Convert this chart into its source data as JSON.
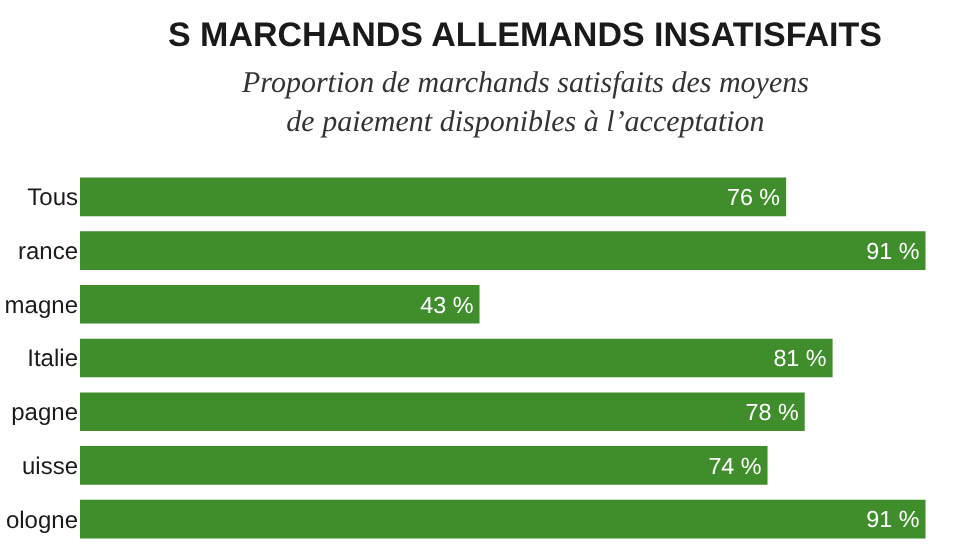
{
  "chart_data": {
    "type": "bar",
    "orientation": "horizontal",
    "title": "S MARCHANDS ALLEMANDS INSATISFAITS",
    "subtitle": "Proportion de marchands satisfaits des moyens\nde paiement disponibles à l’acceptation",
    "categories": [
      "Tous",
      "rance",
      "magne",
      "Italie",
      "pagne",
      "uisse",
      "ologne"
    ],
    "values": [
      76,
      91,
      43,
      81,
      78,
      74,
      91
    ],
    "value_labels": [
      "76 %",
      "91 %",
      "43 %",
      "81 %",
      "78 %",
      "74 %",
      "91 %"
    ],
    "color": "#3f8d2b"
  }
}
